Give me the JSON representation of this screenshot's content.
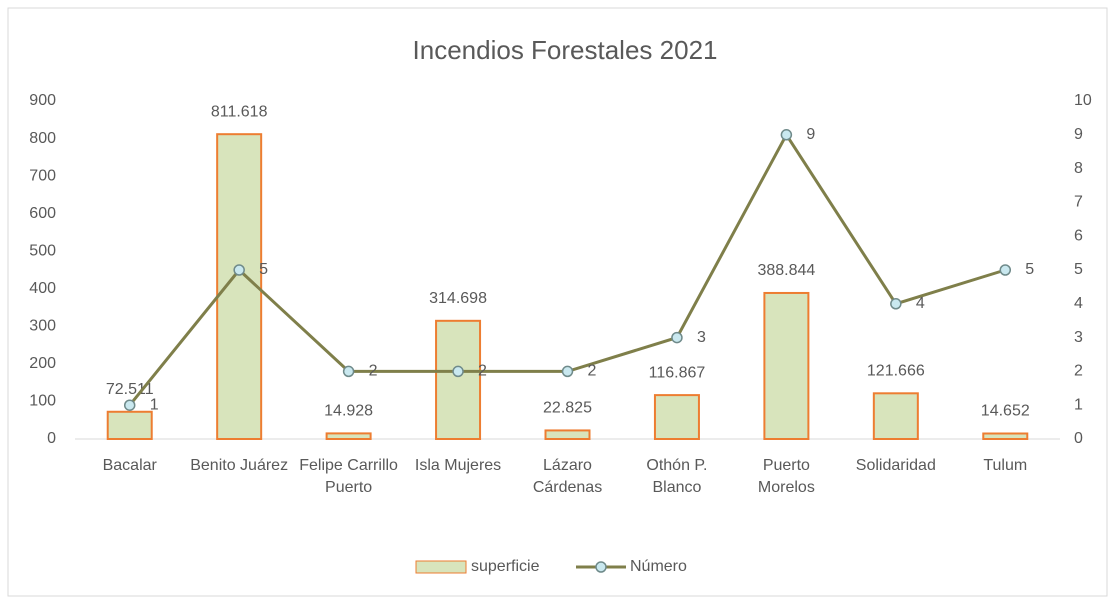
{
  "chart_data": {
    "type": "bar",
    "title": "Incendios Forestales 2021",
    "categories": [
      "Bacalar",
      "Benito Juárez",
      "Felipe Carrillo Puerto",
      "Isla Mujeres",
      "Lázaro Cárdenas",
      "Othón P. Blanco",
      "Puerto Morelos",
      "Solidaridad",
      "Tulum"
    ],
    "series": [
      {
        "name": "superficie",
        "type": "bar",
        "color": "#d8e4bc",
        "edge": "#ed7d31",
        "values": [
          72.511,
          811.618,
          14.928,
          314.698,
          22.825,
          116.867,
          388.844,
          121.666,
          14.652
        ]
      },
      {
        "name": "Número",
        "type": "line",
        "axis": "y2",
        "color": "#7f7f4a",
        "marker": "#c9e8ef",
        "values": [
          1,
          5,
          2,
          2,
          2,
          3,
          9,
          4,
          5
        ]
      }
    ],
    "ylim": [
      0,
      900
    ],
    "yticks": [
      0,
      100,
      200,
      300,
      400,
      500,
      600,
      700,
      800,
      900
    ],
    "y2lim": [
      0,
      10
    ],
    "y2ticks": [
      0,
      1,
      2,
      3,
      4,
      5,
      6,
      7,
      8,
      9,
      10
    ],
    "grid": false,
    "legend": "bottom"
  }
}
